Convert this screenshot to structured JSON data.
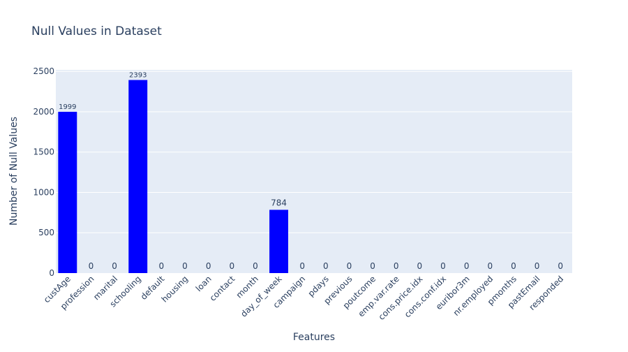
{
  "chart_data": {
    "type": "bar",
    "title": "Null Values in Dataset",
    "xlabel": "Features",
    "ylabel": "Number of Null Values",
    "categories": [
      "custAge",
      "profession",
      "marital",
      "schooling",
      "default",
      "housing",
      "loan",
      "contact",
      "month",
      "day_of_week",
      "campaign",
      "pdays",
      "previous",
      "poutcome",
      "emp.var.rate",
      "cons.price.idx",
      "cons.conf.idx",
      "euribor3m",
      "nr.employed",
      "pmonths",
      "pastEmail",
      "responded"
    ],
    "values": [
      1999,
      0,
      0,
      2393,
      0,
      0,
      0,
      0,
      0,
      784,
      0,
      0,
      0,
      0,
      0,
      0,
      0,
      0,
      0,
      0,
      0,
      0
    ],
    "value_labels": [
      "1999",
      "0",
      "0",
      "2393",
      "0",
      "0",
      "0",
      "0",
      "0",
      "784",
      "0",
      "0",
      "0",
      "0",
      "0",
      "0",
      "0",
      "0",
      "0",
      "0",
      "0",
      "0"
    ],
    "ylim": [
      0,
      2519
    ],
    "yticks": [
      0,
      500,
      1000,
      1500,
      2000,
      2500
    ],
    "ytick_labels": [
      "0",
      "500",
      "1000",
      "1500",
      "2000",
      "2500"
    ],
    "grid": true,
    "colors": {
      "bar": "#0000ff",
      "plot_bg": "#e5ecf6",
      "grid": "#ffffff",
      "text": "#2a3f5f"
    }
  }
}
